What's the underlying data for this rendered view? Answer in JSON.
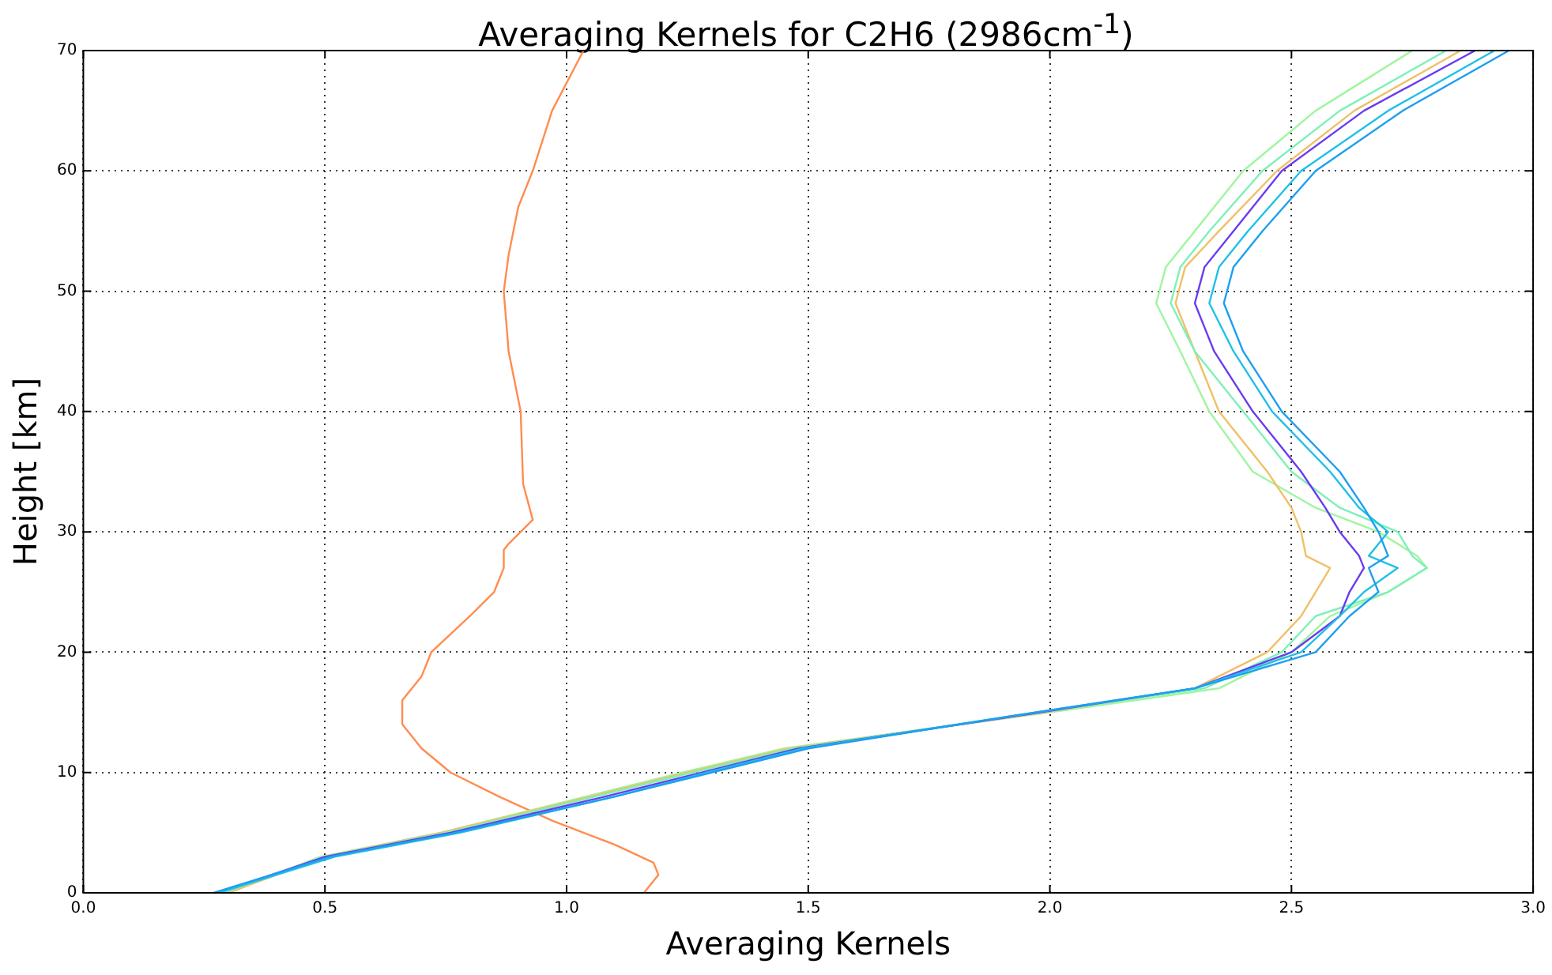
{
  "chart_data": {
    "type": "line",
    "title": "Averaging Kernels for C2H6 (2986cm$^{-1}$)",
    "xlabel": "Averaging Kernels",
    "ylabel": "Height [km]",
    "xlim": [
      0,
      3
    ],
    "xticks": [
      {
        "value": 0,
        "label": "0.0"
      },
      {
        "value": 0.5,
        "label": "0.5"
      },
      {
        "value": 1,
        "label": "1.0"
      },
      {
        "value": 1.5,
        "label": "1.5"
      },
      {
        "value": 2,
        "label": "2.0"
      },
      {
        "value": 2.5,
        "label": "2.5"
      },
      {
        "value": 3,
        "label": "3.0"
      }
    ],
    "ylim": [
      0,
      70
    ],
    "yticks": [
      0,
      10,
      20,
      30,
      40,
      50,
      60,
      70
    ],
    "grid": true,
    "legend": false,
    "line_style": "solid",
    "series": [
      {
        "color": "#1e9ff0",
        "x": [
          0.27,
          0.51,
          0.77,
          1.1,
          1.3,
          1.5,
          1.97,
          2.3,
          2.55,
          2.62,
          2.68,
          2.66,
          2.7,
          2.68,
          2.65,
          2.6,
          2.48,
          2.4,
          2.36,
          2.38,
          2.44,
          2.55,
          2.73,
          2.95
        ],
        "values": [
          0,
          3,
          5,
          8,
          10,
          12,
          15,
          17,
          20,
          23,
          25,
          27,
          28,
          30,
          32,
          35,
          40,
          45,
          49,
          52,
          55,
          60,
          65,
          70
        ]
      },
      {
        "color": "#20c0e8",
        "x": [
          0.28,
          0.52,
          0.78,
          1.1,
          1.29,
          1.49,
          1.97,
          2.3,
          2.52,
          2.6,
          2.65,
          2.72,
          2.66,
          2.7,
          2.64,
          2.58,
          2.46,
          2.38,
          2.33,
          2.35,
          2.41,
          2.52,
          2.7,
          2.92
        ],
        "values": [
          0,
          3,
          5,
          8,
          10,
          12,
          15,
          17,
          20,
          23,
          25,
          27,
          28,
          30,
          32,
          35,
          40,
          45,
          49,
          52,
          55,
          60,
          65,
          70
        ]
      },
      {
        "color": "#6a3cf0",
        "x": [
          0.28,
          0.5,
          0.76,
          1.08,
          1.28,
          1.48,
          1.98,
          2.3,
          2.5,
          2.6,
          2.62,
          2.65,
          2.64,
          2.6,
          2.57,
          2.52,
          2.42,
          2.34,
          2.3,
          2.32,
          2.38,
          2.48,
          2.65,
          2.88
        ],
        "values": [
          0,
          3,
          5,
          8,
          10,
          12,
          15,
          17,
          20,
          23,
          25,
          27,
          28,
          30,
          32,
          35,
          40,
          45,
          49,
          52,
          55,
          60,
          65,
          70
        ]
      },
      {
        "color": "#7ef0b8",
        "x": [
          0.29,
          0.5,
          0.75,
          1.06,
          1.26,
          1.47,
          1.98,
          2.32,
          2.48,
          2.55,
          2.7,
          2.78,
          2.75,
          2.72,
          2.6,
          2.5,
          2.4,
          2.3,
          2.25,
          2.27,
          2.33,
          2.44,
          2.6,
          2.82
        ],
        "values": [
          0,
          3,
          5,
          8,
          10,
          12,
          15,
          17,
          20,
          23,
          25,
          27,
          28,
          30,
          32,
          35,
          40,
          45,
          49,
          52,
          55,
          60,
          65,
          70
        ]
      },
      {
        "color": "#f0c068",
        "x": [
          0.3,
          0.5,
          0.74,
          1.05,
          1.25,
          1.46,
          1.99,
          2.3,
          2.45,
          2.52,
          2.55,
          2.58,
          2.53,
          2.52,
          2.5,
          2.45,
          2.35,
          2.3,
          2.26,
          2.28,
          2.35,
          2.47,
          2.63,
          2.85
        ],
        "values": [
          0,
          3,
          5,
          8,
          10,
          12,
          15,
          17,
          20,
          23,
          25,
          27,
          28,
          30,
          32,
          35,
          40,
          45,
          49,
          52,
          55,
          60,
          65,
          70
        ]
      },
      {
        "color": "#a0f5a0",
        "x": [
          0.3,
          0.49,
          0.74,
          1.04,
          1.24,
          1.45,
          2.0,
          2.35,
          2.5,
          2.58,
          2.7,
          2.78,
          2.76,
          2.68,
          2.55,
          2.42,
          2.33,
          2.27,
          2.22,
          2.24,
          2.3,
          2.4,
          2.55,
          2.75
        ],
        "values": [
          0,
          3,
          5,
          8,
          10,
          12,
          15,
          17,
          20,
          23,
          25,
          27,
          28,
          30,
          32,
          35,
          40,
          45,
          49,
          52,
          55,
          60,
          65,
          70
        ]
      },
      {
        "color": "#ff8c50",
        "x": [
          1.16,
          1.19,
          1.18,
          1.1,
          0.97,
          0.86,
          0.76,
          0.7,
          0.66,
          0.66,
          0.7,
          0.72,
          0.8,
          0.85,
          0.87,
          0.87,
          0.88,
          0.93,
          0.91,
          0.905,
          0.88,
          0.87,
          0.88,
          0.9,
          0.93,
          0.97,
          1.035
        ],
        "values": [
          0,
          1.5,
          2.5,
          4,
          6,
          8,
          10,
          12,
          14,
          16,
          18,
          20,
          23,
          25,
          27,
          28.5,
          29,
          31,
          34,
          40,
          45,
          50,
          53,
          57,
          60,
          65,
          70
        ]
      }
    ]
  }
}
